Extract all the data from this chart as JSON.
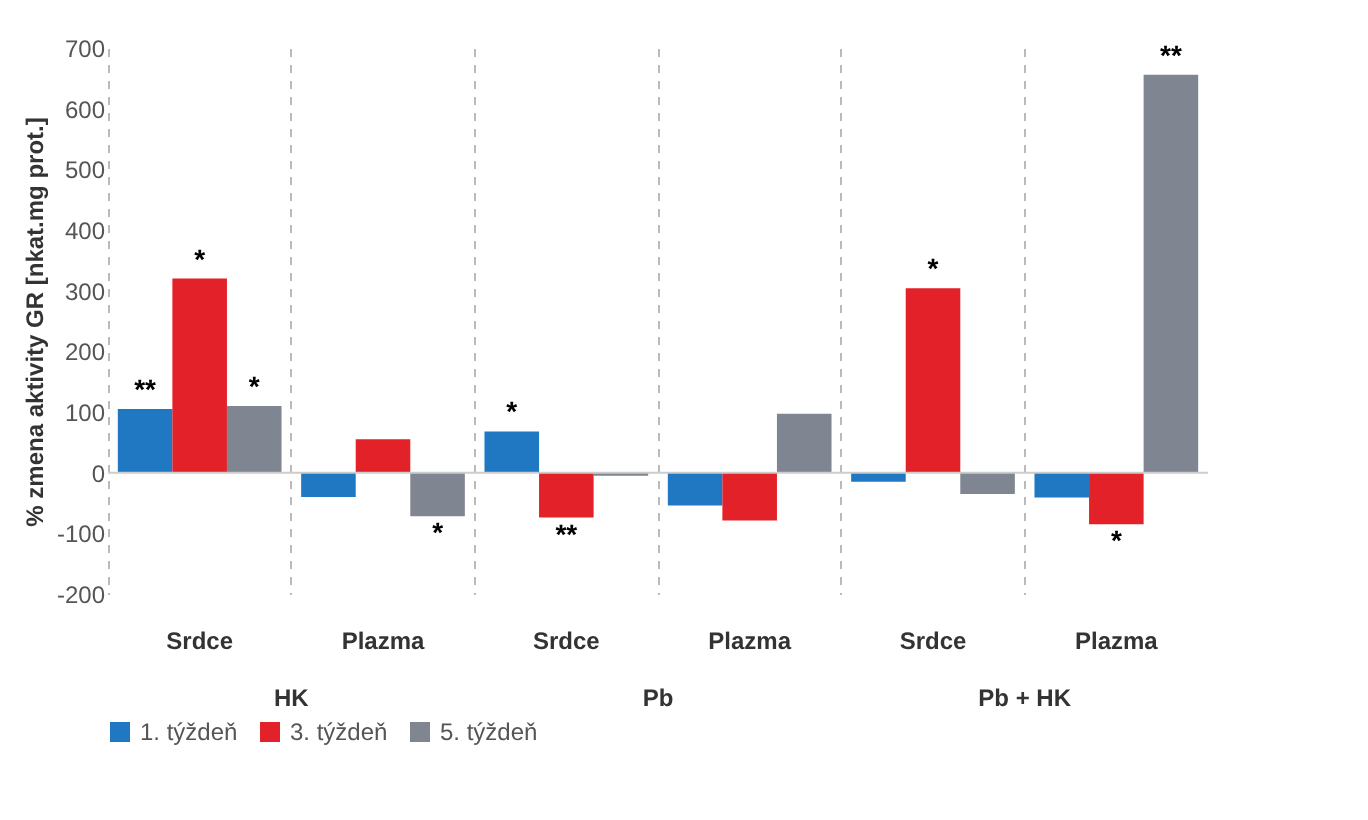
{
  "chart_data": {
    "type": "bar",
    "ylabel": "% zmena aktivity GR [nkat.mg prot.]",
    "categories": [
      "Srdce",
      "Plazma",
      "Srdce",
      "Plazma",
      "Srdce",
      "Plazma"
    ],
    "series": [
      {
        "name": "1. týždeň",
        "color": "#1f78c1",
        "values": [
          105,
          -40,
          68,
          -54,
          -15,
          -41
        ],
        "value_labels": [
          "**",
          null,
          "*",
          null,
          null,
          null
        ]
      },
      {
        "name": "3. týždeň",
        "color": "#e32128",
        "values": [
          320,
          55,
          -74,
          -79,
          304,
          -85
        ],
        "value_labels": [
          "*",
          null,
          "**",
          null,
          "*",
          "*"
        ]
      },
      {
        "name": "5. týždeň",
        "color": "#7f8591",
        "values": [
          110,
          -72,
          -5,
          97,
          -35,
          656
        ],
        "value_labels": [
          "*",
          "*",
          null,
          null,
          null,
          "**"
        ]
      }
    ],
    "annotations": [
      "HK",
      "Pb",
      "Pb + HK"
    ],
    "ylim": [
      -200,
      700
    ],
    "yticks": [
      -200,
      -100,
      0,
      100,
      200,
      300,
      400,
      500,
      600,
      700
    ],
    "grid": "x",
    "legend": "bottom"
  }
}
